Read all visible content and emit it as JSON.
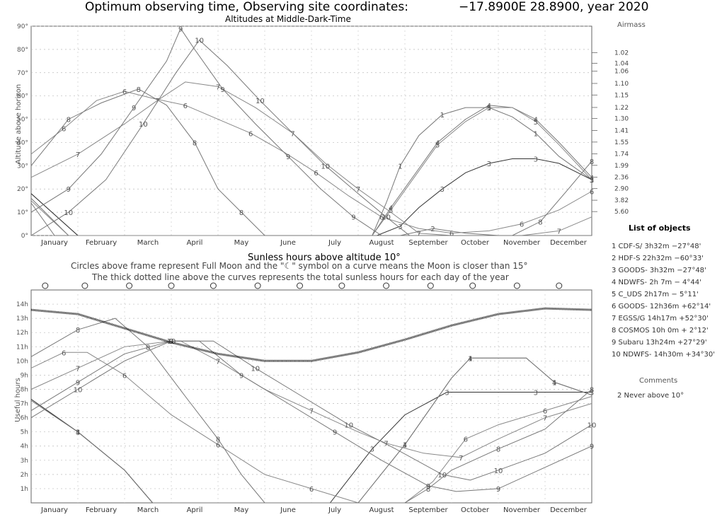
{
  "header": {
    "title": "Optimum observing time, Observing site coordinates:",
    "coords": "−17.8900E  28.8900, year 2020"
  },
  "legend": {
    "title": "List of objects",
    "objects": [
      "1 CDF-S/  3h32m −27°48'",
      "2 HDF-S  22h32m −60°33'",
      "3 GOODS-  3h32m −27°48'",
      "4 NDWFS-  2h 7m − 4°44'",
      "5 C_UDS  2h17m − 5°11'",
      "6 GOODS- 12h36m +62°14'",
      "7 EGSS/G 14h17m +52°30'",
      "8 COSMOS 10h 0m + 2°12'",
      "9 Subaru 13h24m +27°29'",
      "10 NDWFS- 14h30m +34°30'"
    ]
  },
  "comments": {
    "title": "Comments",
    "items": [
      "2 Never above 10°"
    ]
  },
  "chart_data": [
    {
      "type": "line",
      "title": "Altitudes at Middle-Dark-Time",
      "ylabel": "Altitude above horizon",
      "ylim": [
        0,
        90
      ],
      "yticks": [
        "0°",
        "10°",
        "20°",
        "30°",
        "40°",
        "50°",
        "60°",
        "70°",
        "80°",
        "90°"
      ],
      "categories": [
        "January",
        "February",
        "March",
        "April",
        "May",
        "June",
        "July",
        "August",
        "September",
        "October",
        "November",
        "December"
      ],
      "airmass_label": "Airmass",
      "airmass_ticks": [
        "1.02",
        "1.04",
        "1.06",
        "1.10",
        "1.15",
        "1.22",
        "1.30",
        "1.41",
        "1.55",
        "1.74",
        "1.99",
        "2.36",
        "2.90",
        "3.82",
        "5.60"
      ],
      "series": [
        {
          "name": "1",
          "x": [
            0,
            1,
            1.8,
            2.5,
            3,
            4,
            5,
            6,
            7,
            7.3,
            7.6,
            7.9,
            8.3,
            8.8,
            9.3,
            9.8,
            10.3,
            10.8,
            11.3,
            12
          ],
          "y": [
            18,
            0,
            null,
            null,
            null,
            null,
            null,
            null,
            null,
            0,
            14,
            30,
            43,
            52,
            55,
            55,
            51,
            44,
            34,
            24
          ],
          "color": "#777",
          "label": "1"
        },
        {
          "name": "2",
          "x": [
            0,
            0.5,
            7.9,
            8.6,
            9.3,
            10,
            10.7,
            11.4,
            12
          ],
          "y": [
            14,
            0,
            0,
            3,
            1,
            0,
            0,
            0,
            0
          ],
          "color": "#777",
          "label": "2"
        },
        {
          "name": "3",
          "x": [
            0,
            1,
            7.4,
            7.9,
            8.3,
            8.8,
            9.3,
            9.8,
            10.3,
            10.8,
            11.3,
            12
          ],
          "y": [
            18,
            0,
            0,
            4,
            12,
            20,
            27,
            31,
            33,
            33,
            31,
            24
          ],
          "color": "#333",
          "label": "3"
        },
        {
          "name": "4",
          "x": [
            0,
            0.8,
            7.3,
            7.7,
            8.2,
            8.7,
            9.3,
            9.8,
            10.3,
            10.8,
            11.3,
            12
          ],
          "y": [
            16,
            0,
            0,
            12,
            26,
            40,
            50,
            56,
            55,
            50,
            40,
            25
          ],
          "color": "#777",
          "label": "4"
        },
        {
          "name": "5",
          "x": [
            0,
            0.8,
            7.3,
            7.7,
            8.2,
            8.7,
            9.3,
            9.8,
            10.3,
            10.8,
            11.3,
            12
          ],
          "y": [
            15,
            0,
            0,
            11,
            25,
            39,
            49,
            55,
            55,
            49,
            39,
            24
          ],
          "color": "#888",
          "label": "5"
        },
        {
          "name": "6",
          "x": [
            0,
            0.7,
            1.4,
            2,
            2.6,
            3.3,
            4,
            4.7,
            5.4,
            6.1,
            6.8,
            7.5,
            8.3,
            9,
            9.8,
            10.5,
            11.3,
            12
          ],
          "y": [
            35,
            46,
            58,
            62,
            59,
            56,
            50,
            44,
            36,
            27,
            17,
            8,
            3,
            1,
            2,
            5,
            11,
            19
          ],
          "color": "#888",
          "label": "6"
        },
        {
          "name": "7",
          "x": [
            0,
            1,
            2,
            2.7,
            3.3,
            4,
            4.8,
            5.6,
            6.3,
            7,
            7.7,
            8.3,
            9,
            9.7,
            10.5,
            11.3,
            12
          ],
          "y": [
            25,
            35,
            48,
            58,
            66,
            64,
            55,
            44,
            31,
            20,
            10,
            1,
            0,
            0,
            0,
            2,
            8
          ],
          "color": "#888",
          "label": "7"
        },
        {
          "name": "8",
          "x": [
            0,
            0.8,
            1.5,
            2.3,
            2.9,
            3.5,
            4,
            4.5,
            5,
            5.5,
            7.5,
            8.3,
            9,
            9.7,
            10.3,
            10.9,
            11.5,
            12
          ],
          "y": [
            30,
            50,
            57,
            63,
            56,
            40,
            20,
            10,
            0,
            0,
            0,
            0,
            0,
            0,
            0,
            6,
            20,
            32
          ],
          "color": "#777",
          "label": "8"
        },
        {
          "name": "9",
          "x": [
            0,
            0.8,
            1.5,
            2.2,
            2.9,
            3.2,
            3.5,
            4.1,
            4.8,
            5.5,
            6.2,
            6.9,
            7.5,
            8.1,
            8.7,
            9.3,
            9.9,
            10.5,
            11.1,
            11.6,
            12
          ],
          "y": [
            10,
            20,
            35,
            55,
            75,
            89,
            80,
            63,
            48,
            34,
            20,
            8,
            0,
            0,
            0,
            0,
            0,
            0,
            0,
            0,
            0
          ],
          "color": "#777",
          "label": "9"
        },
        {
          "name": "10",
          "x": [
            0,
            0.8,
            1.6,
            2.4,
            3.1,
            3.6,
            4.2,
            4.9,
            5.6,
            6.3,
            7,
            7.6,
            8.1,
            8.7,
            9.3,
            9.9,
            10.5,
            11.1,
            11.6,
            12
          ],
          "y": [
            0,
            10,
            24,
            48,
            70,
            84,
            73,
            58,
            44,
            30,
            18,
            8,
            0,
            0,
            0,
            0,
            0,
            0,
            0,
            0
          ],
          "color": "#777",
          "label": "10"
        }
      ]
    },
    {
      "type": "line",
      "title": "Sunless hours above altitude 10°",
      "subtitle": [
        "Circles above frame represent Full Moon and the \"☾\" symbol on a curve means the Moon is closer than 15°",
        "The thick dotted line above the curves represents the total sunless hours for each day of the year"
      ],
      "ylabel": "Useful hours",
      "ylim": [
        0,
        15
      ],
      "yticks": [
        "1h",
        "2h",
        "3h",
        "4h",
        "5h",
        "6h",
        "7h",
        "8h",
        "9h",
        "10h",
        "11h",
        "12h",
        "13h",
        "14h"
      ],
      "categories": [
        "January",
        "February",
        "March",
        "April",
        "May",
        "June",
        "July",
        "August",
        "September",
        "October",
        "November",
        "December"
      ],
      "full_moon_x": [
        0.3,
        1.15,
        2.1,
        3.0,
        3.9,
        4.85,
        5.75,
        6.65,
        7.6,
        8.55,
        9.45,
        10.4,
        11.3
      ],
      "total_sunless": {
        "x": [
          0,
          1,
          2,
          3,
          4,
          5,
          6,
          7,
          8,
          9,
          10,
          11,
          12
        ],
        "y": [
          13.6,
          13.3,
          12.3,
          11.3,
          10.5,
          10.0,
          10.0,
          10.6,
          11.5,
          12.5,
          13.3,
          13.7,
          13.6
        ]
      },
      "series": [
        {
          "name": "1",
          "x": [
            0,
            1,
            2,
            2.6,
            7,
            8,
            9,
            9.4,
            10.6,
            11.2,
            12
          ],
          "y": [
            7.3,
            5,
            2.3,
            0,
            0,
            4.1,
            8.8,
            10.2,
            10.2,
            8.5,
            7.6
          ],
          "color": "#777",
          "label": "1"
        },
        {
          "name": "3",
          "x": [
            0,
            1,
            2,
            2.6,
            6.4,
            7.3,
            8,
            8.9,
            9.2,
            10.8,
            11.3,
            12
          ],
          "y": [
            7.3,
            5,
            2.3,
            0,
            0,
            3.8,
            6.2,
            7.8,
            7.8,
            7.8,
            7.8,
            7.8
          ],
          "color": "#333",
          "label": "3"
        },
        {
          "name": "4",
          "x": [
            0,
            1,
            2,
            2.6,
            7,
            8,
            9,
            9.4,
            10.6,
            11.2,
            12
          ],
          "y": [
            7.2,
            5,
            2.3,
            0,
            0,
            4.1,
            8.8,
            10.2,
            10.2,
            8.5,
            7.6
          ],
          "color": "#777",
          "label": "4"
        },
        {
          "name": "6",
          "x": [
            0,
            0.7,
            1.2,
            2,
            3,
            4,
            5,
            6,
            7,
            8,
            8.6,
            9.3,
            10,
            11,
            12
          ],
          "y": [
            9.5,
            10.6,
            10.6,
            9,
            6.2,
            4.1,
            2,
            1,
            0,
            0,
            1.5,
            4.5,
            5.5,
            6.5,
            7.5
          ],
          "color": "#888",
          "label": "6"
        },
        {
          "name": "7",
          "x": [
            0,
            1,
            2,
            3,
            3.2,
            4,
            5,
            6,
            7,
            7.6,
            8.4,
            9.2,
            10,
            11,
            12
          ],
          "y": [
            8,
            9.5,
            11,
            11.4,
            11.4,
            10,
            8,
            6.5,
            5,
            4.2,
            3.5,
            3.2,
            4.5,
            6,
            7
          ],
          "color": "#888",
          "label": "7"
        },
        {
          "name": "8",
          "x": [
            0,
            1,
            1.8,
            2.5,
            3.3,
            4,
            4.5,
            5,
            6,
            7,
            8,
            8.5,
            9,
            10,
            11,
            12
          ],
          "y": [
            10.3,
            12.2,
            13,
            11,
            7.5,
            4.5,
            2,
            0,
            0,
            0,
            0,
            1,
            2.3,
            3.8,
            5.2,
            8
          ],
          "color": "#777",
          "label": "8"
        },
        {
          "name": "9",
          "x": [
            0,
            1,
            2,
            3,
            3.6,
            4.5,
            5.5,
            6.5,
            7.5,
            8.5,
            9.1,
            10,
            11,
            12
          ],
          "y": [
            6.5,
            8.5,
            10.5,
            11.4,
            11.4,
            9,
            7,
            5,
            3,
            1.2,
            0.8,
            1,
            2.5,
            4
          ],
          "color": "#777",
          "label": "9"
        },
        {
          "name": "10",
          "x": [
            0,
            1,
            2,
            3,
            3.9,
            4.8,
            5.8,
            6.8,
            7.8,
            8.8,
            9.4,
            10,
            11,
            12
          ],
          "y": [
            6,
            8,
            10,
            11.4,
            11.4,
            9.5,
            7.5,
            5.5,
            3.8,
            2,
            1.6,
            2.3,
            3.5,
            5.5
          ],
          "color": "#777",
          "label": "10"
        }
      ]
    }
  ]
}
